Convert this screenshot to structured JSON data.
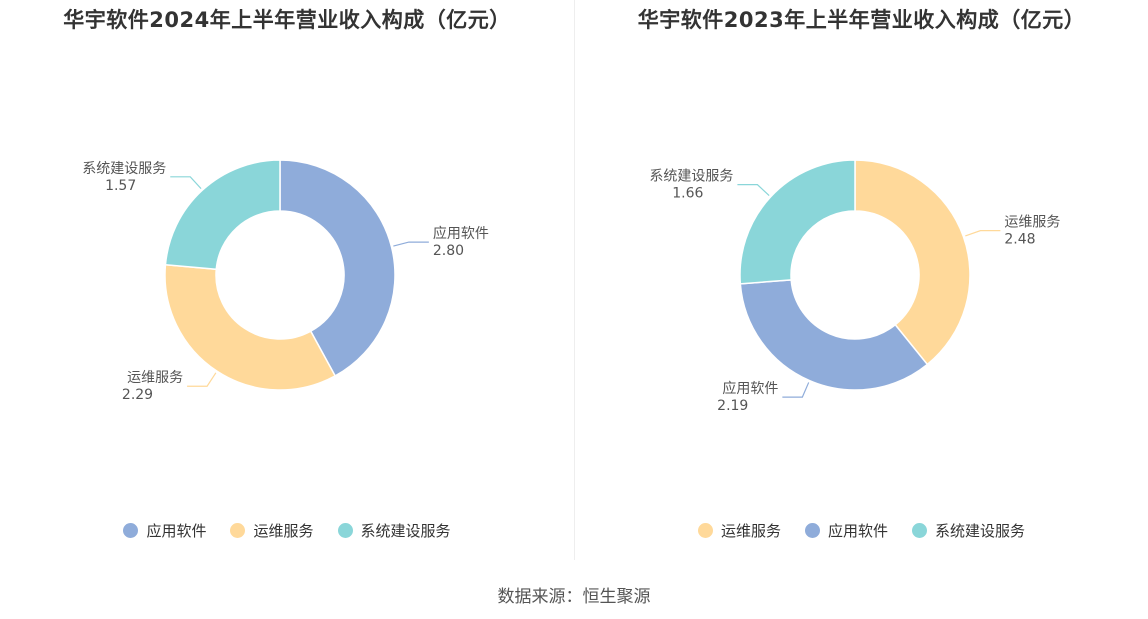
{
  "colors": {
    "应用软件": "#8FACDA",
    "运维服务": "#FFD99A",
    "系统建设服务": "#8AD6D9"
  },
  "chart_data": [
    {
      "type": "pie",
      "title": "华宇软件2024年上半年营业收入构成（亿元）",
      "donut": true,
      "slices": [
        {
          "name": "应用软件",
          "value": 2.8,
          "label": "2.80"
        },
        {
          "name": "运维服务",
          "value": 2.29,
          "label": "2.29"
        },
        {
          "name": "系统建设服务",
          "value": 1.57,
          "label": "1.57"
        }
      ],
      "legend": [
        "应用软件",
        "运维服务",
        "系统建设服务"
      ],
      "legend_position": "bottom"
    },
    {
      "type": "pie",
      "title": "华宇软件2023年上半年营业收入构成（亿元）",
      "donut": true,
      "slices": [
        {
          "name": "运维服务",
          "value": 2.48,
          "label": "2.48"
        },
        {
          "name": "应用软件",
          "value": 2.19,
          "label": "2.19"
        },
        {
          "name": "系统建设服务",
          "value": 1.66,
          "label": "1.66"
        }
      ],
      "legend": [
        "运维服务",
        "应用软件",
        "系统建设服务"
      ],
      "legend_position": "bottom"
    }
  ],
  "source": "数据来源：恒生聚源"
}
